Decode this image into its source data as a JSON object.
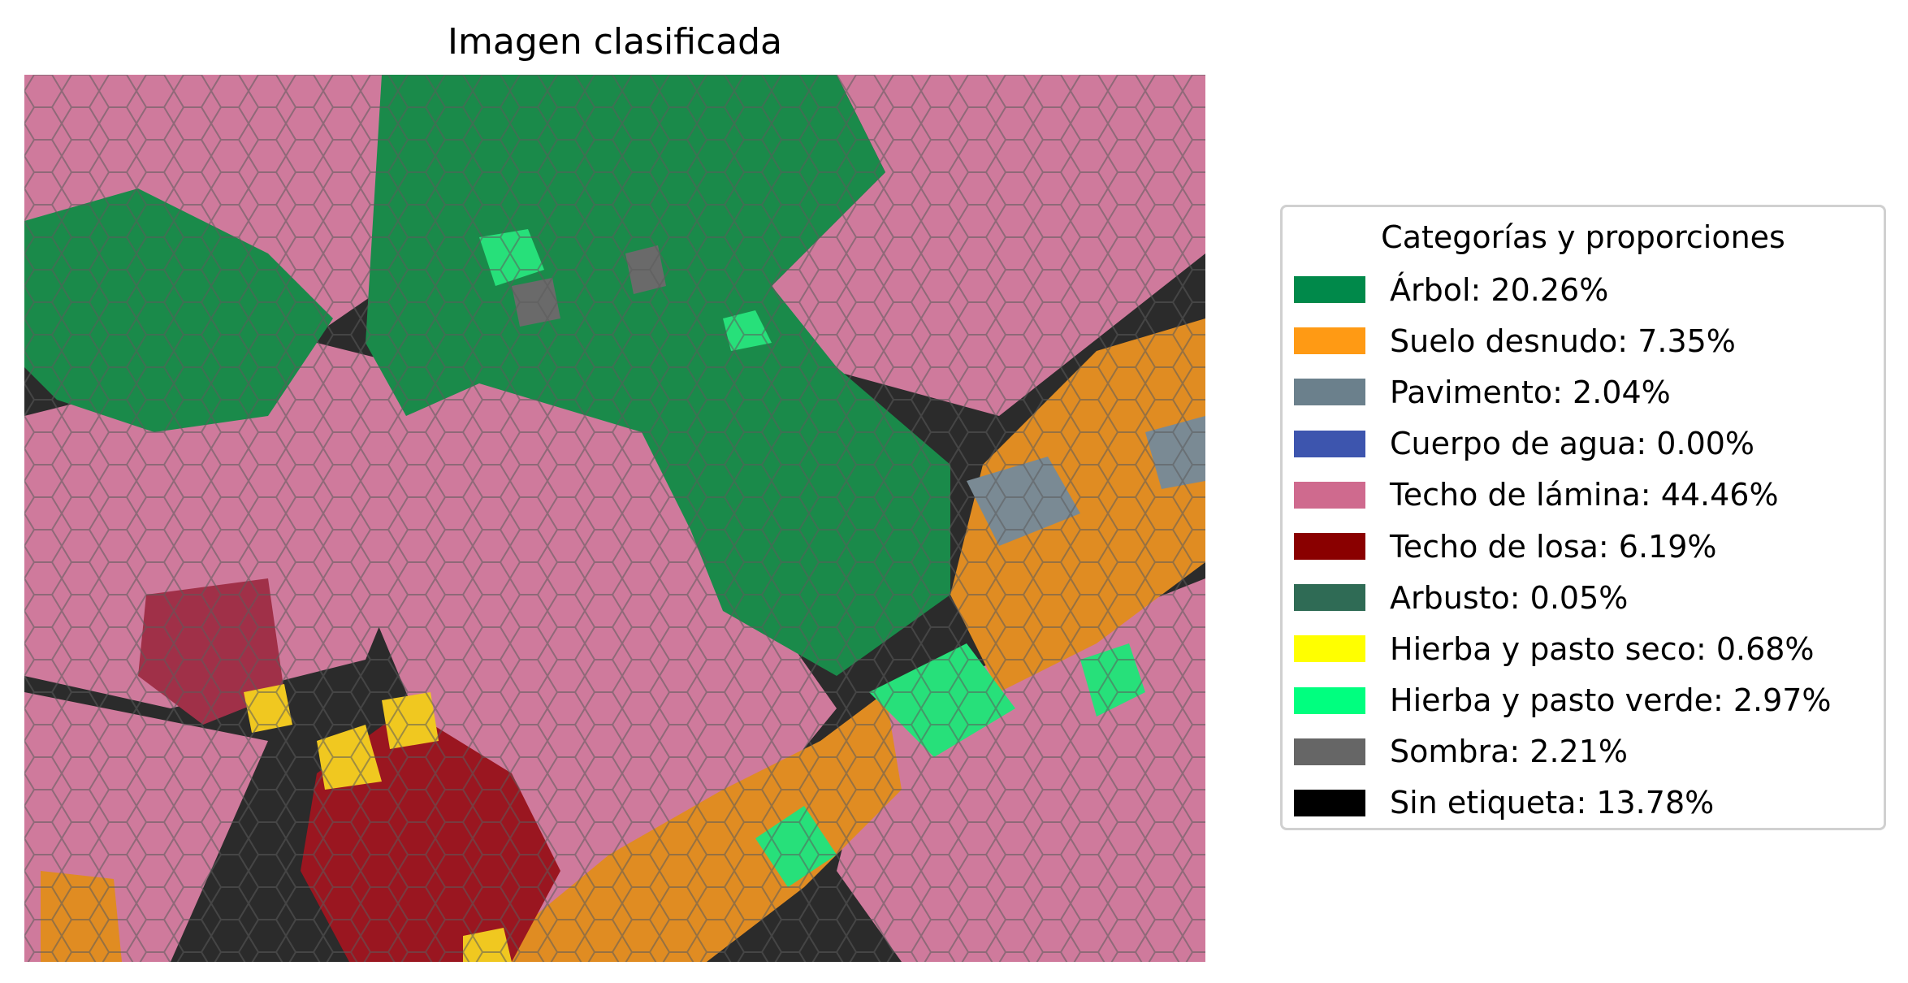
{
  "figure": {
    "title": "Imagen clasificada"
  },
  "legend": {
    "title": "Categorías y proporciones",
    "items": [
      {
        "label": "Árbol: 20.26%",
        "color": "#00894A"
      },
      {
        "label": "Suelo desnudo: 7.35%",
        "color": "#FF9A14"
      },
      {
        "label": "Pavimento: 2.04%",
        "color": "#6B808C"
      },
      {
        "label": "Cuerpo de agua: 0.00%",
        "color": "#3D55AE"
      },
      {
        "label": "Techo de lámina: 44.46%",
        "color": "#CF6A8E"
      },
      {
        "label": "Techo de losa: 6.19%",
        "color": "#8A0000"
      },
      {
        "label": "Arbusto: 0.05%",
        "color": "#2F6B55"
      },
      {
        "label": "Hierba y pasto seco: 0.68%",
        "color": "#FFFF00"
      },
      {
        "label": "Hierba y pasto verde: 2.97%",
        "color": "#00FF7F"
      },
      {
        "label": "Sombra: 2.21%",
        "color": "#666666"
      },
      {
        "label": "Sin etiqueta: 13.78%",
        "color": "#000000"
      }
    ]
  }
}
